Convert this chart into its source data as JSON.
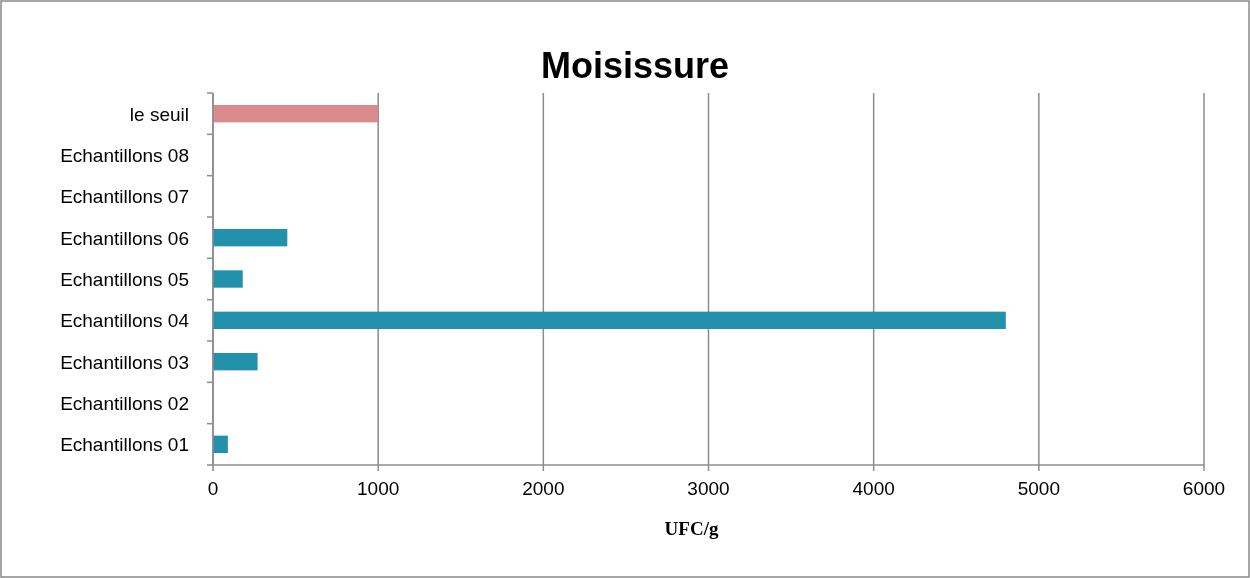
{
  "chart_data": {
    "type": "bar",
    "orientation": "horizontal",
    "title": "Moisissure",
    "xlabel": "UFC/g",
    "categories": [
      "le seuil",
      "Echantillons 08",
      "Echantillons 07",
      "Echantillons 06",
      "Echantillons 05",
      "Echantillons 04",
      "Echantillons 03",
      "Echantillons 02",
      "Echantillons 01"
    ],
    "values": [
      1000,
      0,
      0,
      450,
      180,
      4800,
      270,
      0,
      90
    ],
    "colors": [
      "#d98a8c",
      "#2390ac",
      "#2390ac",
      "#2390ac",
      "#2390ac",
      "#2390ac",
      "#2390ac",
      "#2390ac",
      "#2390ac"
    ],
    "xlim": [
      0,
      6000
    ],
    "xticks": [
      0,
      1000,
      2000,
      3000,
      4000,
      5000,
      6000
    ],
    "grid": "x"
  }
}
